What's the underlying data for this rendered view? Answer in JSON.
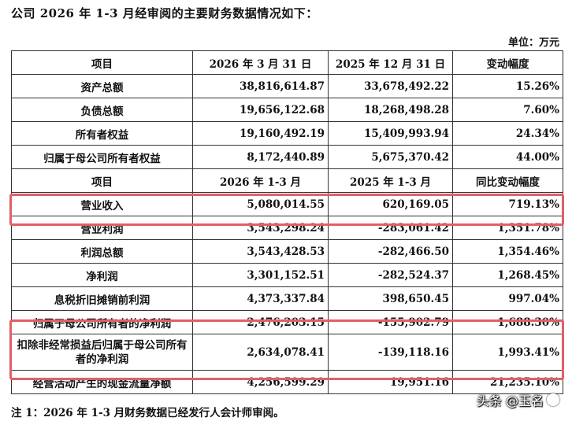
{
  "heading": "公司 2026 年 1-3 月经审阅的主要财务数据情况如下：",
  "unit": "单位：万元",
  "section1": {
    "headers": [
      "项目",
      "2026 年 3 月 31 日",
      "2025 年 12 月 31 日",
      "变动幅度"
    ],
    "rows": [
      {
        "label": "资产总额",
        "a": "38,816,614.87",
        "b": "33,678,492.22",
        "c": "15.26%"
      },
      {
        "label": "负债总额",
        "a": "19,656,122.68",
        "b": "18,268,498.28",
        "c": "7.60%"
      },
      {
        "label": "所有者权益",
        "a": "19,160,492.19",
        "b": "15,409,993.94",
        "c": "24.34%"
      },
      {
        "label": "归属于母公司所有者权益",
        "a": "8,172,440.89",
        "b": "5,675,370.42",
        "c": "44.00%"
      }
    ]
  },
  "section2": {
    "headers": [
      "项目",
      "2026 年 1-3 月",
      "2025 年 1-3 月",
      "同比变动幅度"
    ],
    "rows": [
      {
        "label": "营业收入",
        "a": "5,080,014.55",
        "b": "620,169.05",
        "c": "719.13%"
      },
      {
        "label": "营业利润",
        "a": "3,543,298.24",
        "b": "-283,061.42",
        "c": "1,351.78%"
      },
      {
        "label": "利润总额",
        "a": "3,543,428.53",
        "b": "-282,466.50",
        "c": "1,354.46%"
      },
      {
        "label": "净利润",
        "a": "3,301,152.51",
        "b": "-282,524.37",
        "c": "1,268.45%"
      },
      {
        "label": "息税折旧摊销前利润",
        "a": "4,373,337.84",
        "b": "398,650.45",
        "c": "997.04%"
      },
      {
        "label": "归属于母公司所有者的净利润",
        "a": "2,476,203.15",
        "b": "-155,902.79",
        "c": "1,688.30%"
      },
      {
        "label": "扣除非经常损益后归属于母公司所有者的净利润",
        "a": "2,634,078.41",
        "b": "-139,118.16",
        "c": "1,993.41%"
      },
      {
        "label": "经营活动产生的现金流量净额",
        "a": "4,256,599.29",
        "b": "19,951.16",
        "c": "21,235.10%"
      }
    ]
  },
  "note": "注 1：2026 年 1-3 月财务数据已经发行人会计师审阅。",
  "watermark": "头条 @玉名",
  "colors": {
    "highlight": "#e06067"
  }
}
